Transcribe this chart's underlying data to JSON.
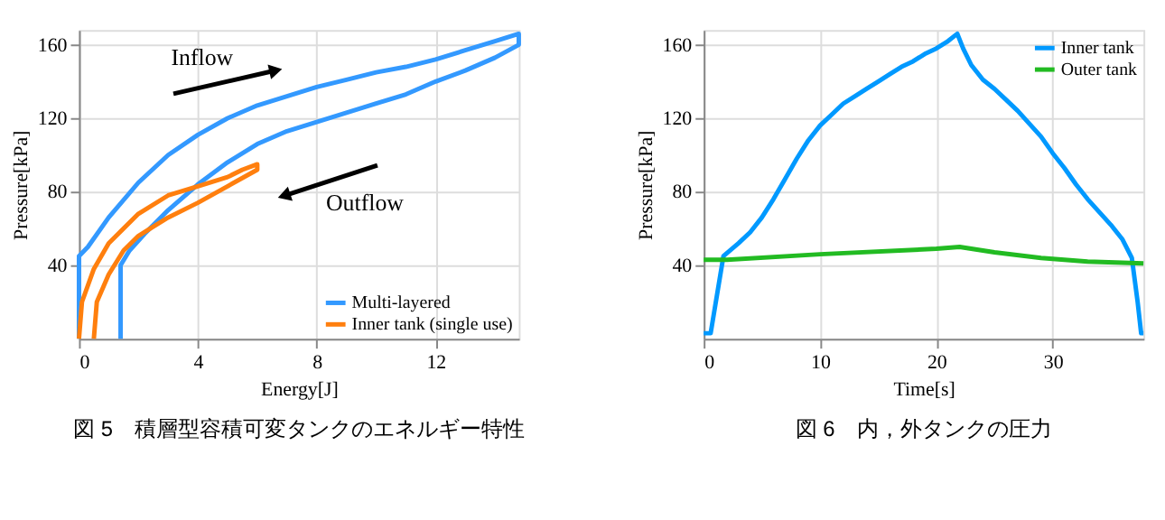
{
  "chart_data": [
    {
      "type": "line",
      "title": "図 5　積層型容積可変タンクのエネルギー特性",
      "xlabel": "Energy[J]",
      "ylabel": "Pressure[kPa]",
      "xlim": [
        0,
        14.8
      ],
      "ylim": [
        0,
        168
      ],
      "xticks": [
        0,
        4,
        8,
        12
      ],
      "yticks": [
        40,
        80,
        120,
        160
      ],
      "grid": true,
      "legend": "bottom right",
      "marker": "none",
      "line_style": "solid",
      "annotations": [
        "Inflow",
        "Outflow"
      ],
      "series": [
        {
          "name": "Multi-layered",
          "color": "#3399ff",
          "x": [
            1.4,
            1.4,
            1.7,
            2.2,
            3,
            4,
            5,
            6,
            7,
            8,
            9,
            10,
            11,
            12,
            13,
            14,
            14.8,
            14.8,
            14,
            13,
            12,
            11,
            10,
            9,
            8,
            7,
            6,
            5,
            4,
            3,
            2,
            1,
            0.3,
            0,
            0
          ],
          "values": [
            0,
            40,
            48,
            57,
            70,
            84,
            96,
            106,
            113,
            118,
            123,
            128,
            133,
            140,
            146,
            153,
            160,
            166,
            162,
            157,
            152,
            148,
            145,
            141,
            137,
            132,
            127,
            120,
            111,
            100,
            85,
            66,
            50,
            45,
            0
          ]
        },
        {
          "name": "Inner tank (single use)",
          "color": "#ff7f0e",
          "x": [
            0.5,
            0.6,
            1,
            1.5,
            2,
            3,
            4,
            5,
            6,
            6,
            5.5,
            5,
            4,
            3,
            2,
            1,
            0.5,
            0.1,
            0
          ],
          "values": [
            0,
            20,
            35,
            48,
            56,
            66,
            74,
            83,
            92,
            95,
            92,
            88,
            83,
            78,
            68,
            52,
            38,
            20,
            0
          ]
        }
      ]
    },
    {
      "type": "line",
      "title": "図 6　内，外タンクの圧力",
      "xlabel": "Time[s]",
      "ylabel": "Pressure[kPa]",
      "xlim": [
        0,
        37.8
      ],
      "ylim": [
        0,
        168
      ],
      "xticks": [
        0,
        10,
        20,
        30
      ],
      "yticks": [
        40,
        80,
        120,
        160
      ],
      "grid": true,
      "legend": "top right",
      "marker": "none",
      "line_style": "solid",
      "series": [
        {
          "name": "Inner tank",
          "color": "#0099ff",
          "x": [
            0,
            0.6,
            1.7,
            3,
            4,
            5,
            6,
            7,
            8,
            9,
            10,
            11,
            12,
            13,
            14,
            15,
            16,
            17,
            18,
            19,
            20,
            21,
            21.8,
            22.3,
            23,
            24,
            25,
            26,
            27,
            28,
            29,
            30,
            31,
            32,
            33,
            34,
            35,
            36,
            36.8,
            37.3,
            37.6,
            37.8
          ],
          "values": [
            3,
            3,
            45,
            52,
            58,
            66,
            76,
            87,
            98,
            108,
            116,
            122,
            128,
            132,
            136,
            140,
            144,
            148,
            151,
            155,
            158,
            162,
            166,
            158,
            149,
            141,
            136,
            130,
            124,
            117,
            110,
            101,
            93,
            84,
            76,
            69,
            62,
            54,
            44,
            20,
            3,
            3
          ]
        },
        {
          "name": "Outer tank",
          "color": "#22bb22",
          "x": [
            0,
            2,
            10,
            20,
            22,
            25,
            29,
            33,
            37.8
          ],
          "values": [
            43,
            43,
            46,
            49,
            50,
            47,
            44,
            42,
            41
          ]
        }
      ]
    }
  ]
}
